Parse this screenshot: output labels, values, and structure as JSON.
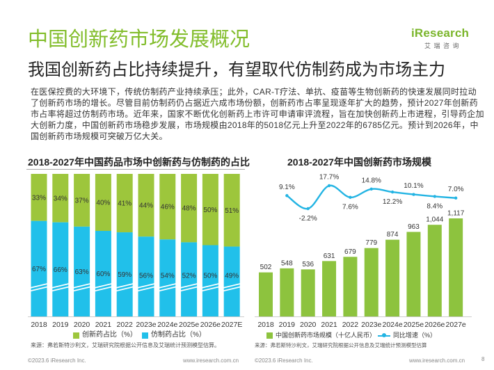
{
  "header": {
    "title": "中国创新药市场发展概况",
    "subtitle": "我国创新药占比持续提升，有望取代仿制药成为市场主力",
    "logo_text": "iResearch",
    "logo_cn": "艾 瑞 咨 询"
  },
  "intro": {
    "lines": [
      "在医保控费的大环境下，传统仿制药产业持续承压；此外，CAR-T疗法、单抗、疫苗等生物创新药的快速发展同时拉动",
      "了创新药市场的增长。尽管目前仿制药仍占据近六成市场份额，创新药市占率呈现逐年扩大的趋势，预计2027年创新药",
      "市占率将超过仿制药市场。近年来，国家不断优化创新药上市许可申请审评流程，旨在加快创新药上市进程，引导药企加",
      "大创新力度，中国创新药市场稳步发展，市场规模由2018年的5018亿元上升至2022年的6785亿元。预计到2026年，中",
      "国创新药市场规模可突破万亿大关。"
    ]
  },
  "chart_data": [
    {
      "type": "bar",
      "stacked": true,
      "title": "2018-2027年中国药品市场中创新药与仿制药的占比",
      "categories": [
        "2018",
        "2019",
        "2020",
        "2021",
        "2022",
        "2023e",
        "2024e",
        "2025e",
        "2026e",
        "2027E"
      ],
      "series": [
        {
          "name": "创新药占比（%）",
          "values": [
            33,
            34,
            37,
            40,
            41,
            44,
            46,
            48,
            50,
            51
          ],
          "labels": [
            "33%",
            "34%",
            "37%",
            "40%",
            "41%",
            "44%",
            "46%",
            "48%",
            "50%",
            "51%"
          ],
          "color": "#9dc63c"
        },
        {
          "name": "仿制药占比（%）",
          "values": [
            67,
            66,
            63,
            60,
            59,
            56,
            54,
            52,
            50,
            49
          ],
          "labels": [
            "67%",
            "66%",
            "63%",
            "60%",
            "59%",
            "56%",
            "54%",
            "52%",
            "50%",
            "49%"
          ],
          "color": "#21c0ea"
        }
      ],
      "axis_break": true,
      "grid": false,
      "legend": "bottom"
    },
    {
      "type": "bar",
      "title": "2018-2027年中国创新药市场规模",
      "categories": [
        "2018",
        "2019",
        "2020",
        "2021",
        "2022",
        "2023e",
        "2024e",
        "2025e",
        "2026e",
        "2027e"
      ],
      "series": [
        {
          "name": "中国创新药市场规模（十亿人民币）",
          "type": "bar",
          "values": [
            502,
            548,
            536,
            631,
            679,
            779,
            874,
            963,
            1044,
            1117
          ],
          "labels": [
            "502",
            "548",
            "536",
            "631",
            "679",
            "779",
            "874",
            "963",
            "1,044",
            "1,117"
          ],
          "color": "#8dc33e"
        },
        {
          "name": "同比增速（%）",
          "type": "line",
          "x": [
            "2019",
            "2020",
            "2021",
            "2022",
            "2023e",
            "2024e",
            "2025e",
            "2026e",
            "2027e"
          ],
          "values": [
            9.1,
            -2.2,
            17.7,
            7.6,
            14.8,
            12.2,
            10.1,
            8.4,
            7.0
          ],
          "labels": [
            "9.1%",
            "-2.2%",
            "17.7%",
            "7.6%",
            "14.8%",
            "12.2%",
            "10.1%",
            "8.4%",
            "7.0%"
          ],
          "color": "#23b4e3"
        }
      ],
      "grid": false,
      "legend": "bottom"
    }
  ],
  "sources": {
    "left": "来源：弗若斯特沙利文，艾瑞研究院根据公开信息及艾瑞统计预测模型估算。",
    "right": "来源：弗若斯特沙利文，艾瑞研究院根据公开信息及艾瑞统计预测模型估算"
  },
  "footer": {
    "copyright_left": "©2023.6 iResearch Inc.",
    "url_left": "www.iresearch.com.cn",
    "copyright_right": "©2023.6 iResearch Inc.",
    "url_right": "www.iresearch.com.cn",
    "page_number": "8"
  }
}
